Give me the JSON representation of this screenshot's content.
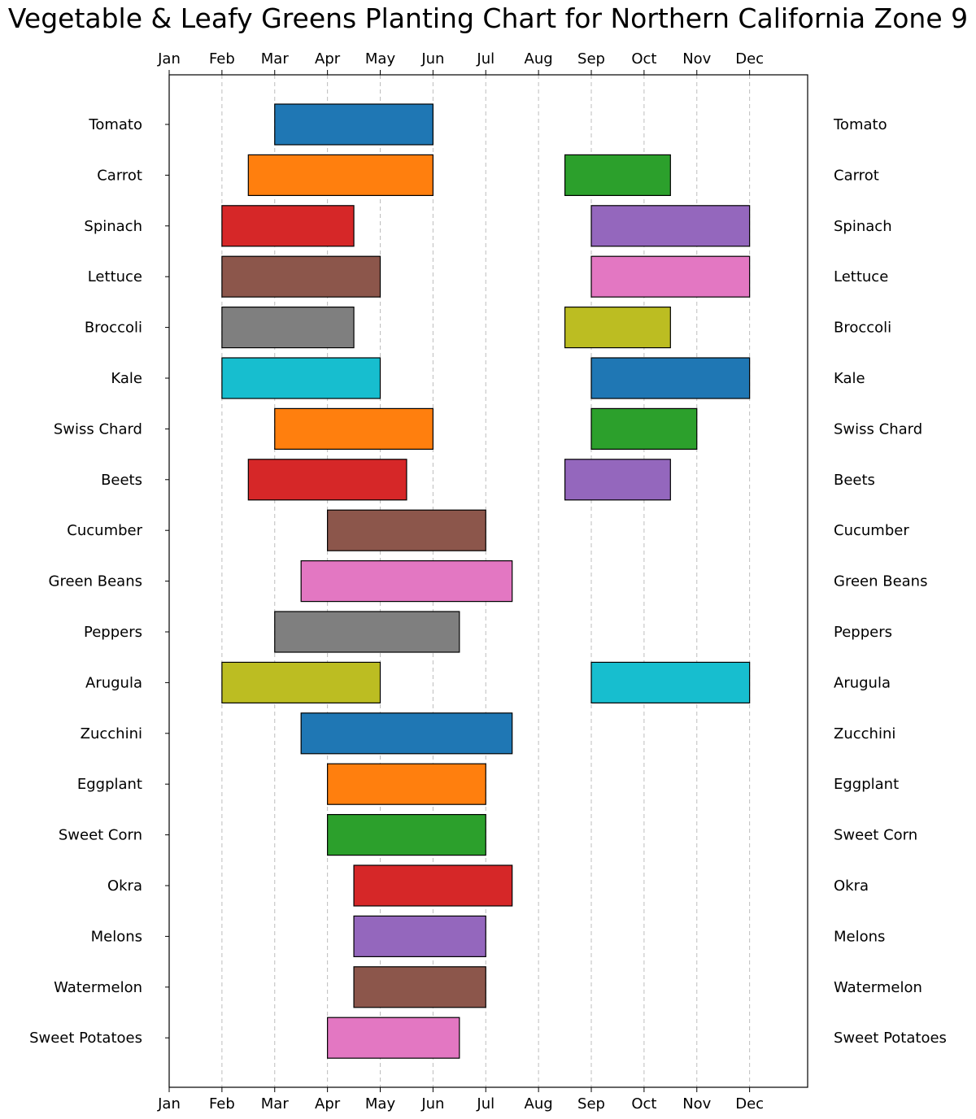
{
  "chart_data": {
    "type": "bar",
    "orientation": "horizontal-gantt",
    "title": "Vegetable & Leafy Greens Planting Chart for Northern California Zone 9",
    "xlabel": "",
    "ylabel": "",
    "x_ticks": [
      "Jan",
      "Feb",
      "Mar",
      "Apr",
      "May",
      "Jun",
      "Jul",
      "Aug",
      "Sep",
      "Oct",
      "Nov",
      "Dec"
    ],
    "x_tick_positions_month": [
      1,
      2,
      3,
      4,
      5,
      6,
      7,
      8,
      9,
      10,
      11,
      12
    ],
    "xlim_month": [
      1,
      13.1
    ],
    "grid": "vertical-dashed",
    "colors": [
      "#1f77b4",
      "#ff7f0e",
      "#2ca02c",
      "#d62728",
      "#9467bd",
      "#8c564b",
      "#e377c2",
      "#7f7f7f",
      "#bcbd22",
      "#17becf"
    ],
    "crops": [
      {
        "name": "Tomato",
        "windows": [
          [
            3,
            6
          ]
        ]
      },
      {
        "name": "Carrot",
        "windows": [
          [
            2.5,
            6
          ],
          [
            8.5,
            10.5
          ]
        ]
      },
      {
        "name": "Spinach",
        "windows": [
          [
            2,
            4.5
          ],
          [
            9,
            12
          ]
        ]
      },
      {
        "name": "Lettuce",
        "windows": [
          [
            2,
            5
          ],
          [
            9,
            12
          ]
        ]
      },
      {
        "name": "Broccoli",
        "windows": [
          [
            2,
            4.5
          ],
          [
            8.5,
            10.5
          ]
        ]
      },
      {
        "name": "Kale",
        "windows": [
          [
            2,
            5
          ],
          [
            9,
            12
          ]
        ]
      },
      {
        "name": "Swiss Chard",
        "windows": [
          [
            3,
            6
          ],
          [
            9,
            11
          ]
        ]
      },
      {
        "name": "Beets",
        "windows": [
          [
            2.5,
            5.5
          ],
          [
            8.5,
            10.5
          ]
        ]
      },
      {
        "name": "Cucumber",
        "windows": [
          [
            4,
            7
          ]
        ]
      },
      {
        "name": "Green Beans",
        "windows": [
          [
            3.5,
            7.5
          ]
        ]
      },
      {
        "name": "Peppers",
        "windows": [
          [
            3,
            6.5
          ]
        ]
      },
      {
        "name": "Arugula",
        "windows": [
          [
            2,
            5
          ],
          [
            9,
            12
          ]
        ]
      },
      {
        "name": "Zucchini",
        "windows": [
          [
            3.5,
            7.5
          ]
        ]
      },
      {
        "name": "Eggplant",
        "windows": [
          [
            4,
            7
          ]
        ]
      },
      {
        "name": "Sweet Corn",
        "windows": [
          [
            4,
            7
          ]
        ]
      },
      {
        "name": "Okra",
        "windows": [
          [
            4.5,
            7.5
          ]
        ]
      },
      {
        "name": "Melons",
        "windows": [
          [
            4.5,
            7
          ]
        ]
      },
      {
        "name": "Watermelon",
        "windows": [
          [
            4.5,
            7
          ]
        ]
      },
      {
        "name": "Sweet Potatoes",
        "windows": [
          [
            4,
            6.5
          ]
        ]
      }
    ]
  }
}
